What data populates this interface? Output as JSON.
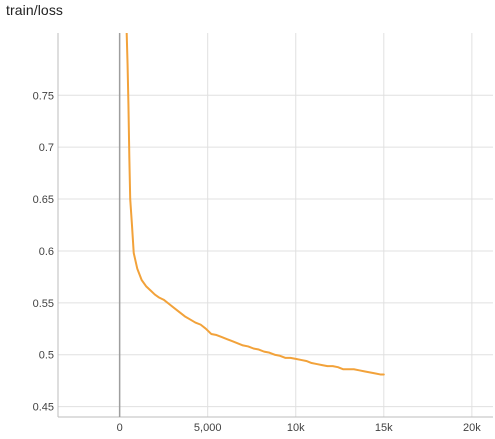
{
  "chart_data": {
    "type": "line",
    "title": "train/loss",
    "xlabel": "",
    "ylabel": "",
    "xlim": [
      -3500,
      21200
    ],
    "ylim": [
      0.44,
      0.81
    ],
    "x_ticks": [
      {
        "value": 0,
        "label": "0"
      },
      {
        "value": 5000,
        "label": "5,000"
      },
      {
        "value": 10000,
        "label": "10k"
      },
      {
        "value": 15000,
        "label": "15k"
      },
      {
        "value": 20000,
        "label": "20k"
      }
    ],
    "y_ticks": [
      {
        "value": 0.45,
        "label": "0.45"
      },
      {
        "value": 0.5,
        "label": "0.5"
      },
      {
        "value": 0.55,
        "label": "0.55"
      },
      {
        "value": 0.6,
        "label": "0.6"
      },
      {
        "value": 0.65,
        "label": "0.65"
      },
      {
        "value": 0.7,
        "label": "0.7"
      },
      {
        "value": 0.75,
        "label": "0.75"
      }
    ],
    "grid": true,
    "legend": "none",
    "series": [
      {
        "color": "#f2a23a",
        "x": [
          400,
          450,
          500,
          550,
          600,
          700,
          800,
          1000,
          1250,
          1500,
          1750,
          2000,
          2250,
          2500,
          2800,
          3100,
          3400,
          3700,
          4000,
          4300,
          4600,
          4900,
          5200,
          5500,
          5800,
          6100,
          6400,
          6700,
          7000,
          7300,
          7600,
          7900,
          8200,
          8500,
          8800,
          9100,
          9400,
          9700,
          10000,
          10300,
          10600,
          10900,
          11200,
          11500,
          11800,
          12100,
          12400,
          12700,
          13000,
          13300,
          13600,
          13900,
          14200,
          14500,
          14800,
          15000
        ],
        "y": [
          0.81,
          0.78,
          0.74,
          0.69,
          0.65,
          0.625,
          0.598,
          0.583,
          0.572,
          0.566,
          0.562,
          0.558,
          0.555,
          0.553,
          0.549,
          0.545,
          0.541,
          0.537,
          0.534,
          0.531,
          0.529,
          0.525,
          0.52,
          0.519,
          0.517,
          0.515,
          0.513,
          0.511,
          0.509,
          0.508,
          0.506,
          0.505,
          0.503,
          0.502,
          0.5,
          0.499,
          0.497,
          0.497,
          0.496,
          0.495,
          0.494,
          0.492,
          0.491,
          0.49,
          0.489,
          0.489,
          0.488,
          0.486,
          0.486,
          0.486,
          0.485,
          0.484,
          0.483,
          0.482,
          0.481,
          0.481
        ]
      }
    ]
  }
}
